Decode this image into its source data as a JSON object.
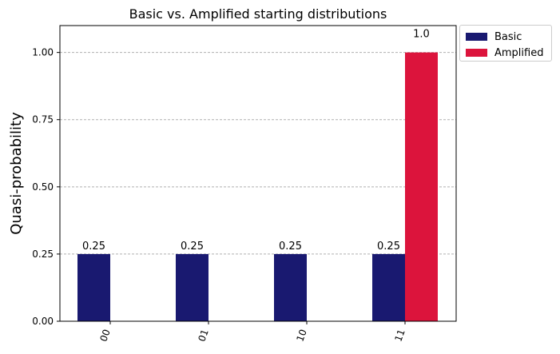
{
  "chart_data": {
    "type": "bar",
    "title": "Basic vs. Amplified starting distributions",
    "xlabel": "",
    "ylabel": "Quasi-probability",
    "categories": [
      "00",
      "01",
      "10",
      "11"
    ],
    "series": [
      {
        "name": "Basic",
        "values": [
          0.25,
          0.25,
          0.25,
          0.25
        ],
        "labels": [
          "0.25",
          "0.25",
          "0.25",
          "0.25"
        ],
        "color": "#191970"
      },
      {
        "name": "Amplified",
        "values": [
          0.0,
          0.0,
          0.0,
          1.0
        ],
        "labels": [
          "",
          "",
          "",
          "1.0"
        ],
        "color": "#dc143c"
      }
    ],
    "ylim": [
      0,
      1.1
    ],
    "yticks": [
      0.0,
      0.25,
      0.5,
      0.75,
      1.0
    ],
    "ytick_labels": [
      "0.00",
      "0.25",
      "0.50",
      "0.75",
      "1.00"
    ],
    "grid": "horizontal dashed",
    "legend": "outside top-right"
  }
}
